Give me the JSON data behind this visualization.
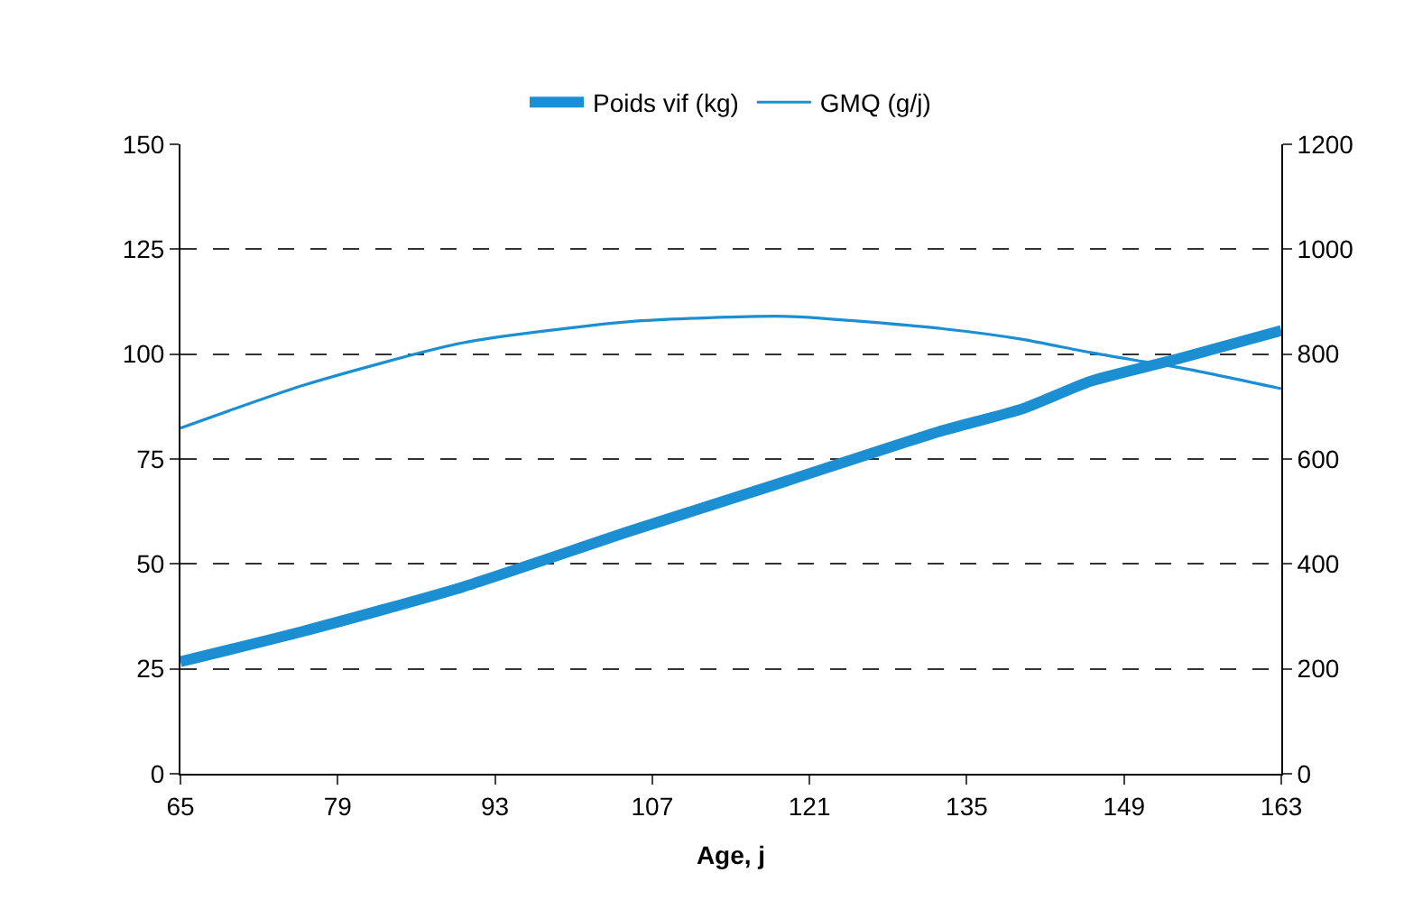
{
  "chart_data": {
    "type": "line",
    "xlabel": "Age, j",
    "xlim": [
      65,
      163
    ],
    "xticks": [
      65,
      79,
      93,
      107,
      121,
      135,
      149,
      163
    ],
    "ylim": [
      0,
      150
    ],
    "yticks": [
      0,
      25,
      50,
      75,
      100,
      125,
      150
    ],
    "y2lim": [
      0,
      1200
    ],
    "y2ticks": [
      0,
      200,
      400,
      600,
      800,
      1000,
      1200
    ],
    "grid": "y",
    "legend": "top",
    "marker": "none",
    "line_style": "solid",
    "series": [
      {
        "name": "Poids vif (kg)",
        "color": "#1b8fd2",
        "x": [
          65,
          76,
          90,
          105,
          119,
          132.5,
          140,
          146,
          154,
          163
        ],
        "values": [
          26.7,
          34,
          44.4,
          57.8,
          69.8,
          81.5,
          87,
          93.5,
          99,
          105.6
        ]
      },
      {
        "name": "GMQ (g/j)",
        "color": "#1b8fd2",
        "axis": "y2",
        "x": [
          65,
          76,
          90,
          105,
          119,
          133,
          140,
          146,
          155,
          163
        ],
        "values": [
          659,
          741,
          821,
          862,
          872,
          848,
          828,
          803,
          770,
          734
        ]
      }
    ]
  }
}
